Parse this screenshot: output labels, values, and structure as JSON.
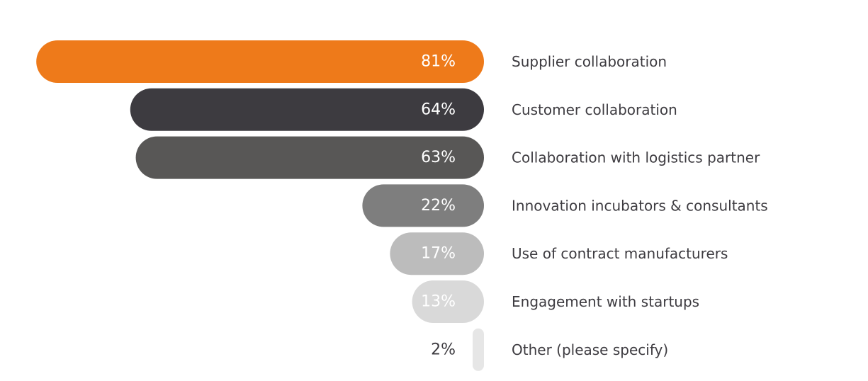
{
  "chart_data": {
    "type": "bar",
    "orientation": "horizontal",
    "title": "",
    "xlabel": "",
    "ylabel": "",
    "xlim": [
      0,
      100
    ],
    "grid": false,
    "legend": "none",
    "categories": [
      "Supplier collaboration",
      "Customer collaboration",
      "Collaboration with logistics partner",
      "Innovation incubators & consultants",
      "Use of contract manufacturers",
      "Engagement with startups",
      "Other (please specify)"
    ],
    "values": [
      81,
      64,
      63,
      22,
      17,
      13,
      2
    ],
    "value_labels": [
      "81%",
      "64%",
      "63%",
      "22%",
      "17%",
      "13%",
      "2%"
    ],
    "bar_colors": [
      "#ee7a1a",
      "#3d3b40",
      "#585756",
      "#7e7e7e",
      "#bcbcbc",
      "#d9d9d9",
      "#e6e6e6"
    ],
    "value_label_colors": [
      "#ffffff",
      "#ffffff",
      "#ffffff",
      "#ffffff",
      "#ffffff",
      "#ffffff",
      "#3d3b40"
    ],
    "label_color": "#3d3b40"
  }
}
